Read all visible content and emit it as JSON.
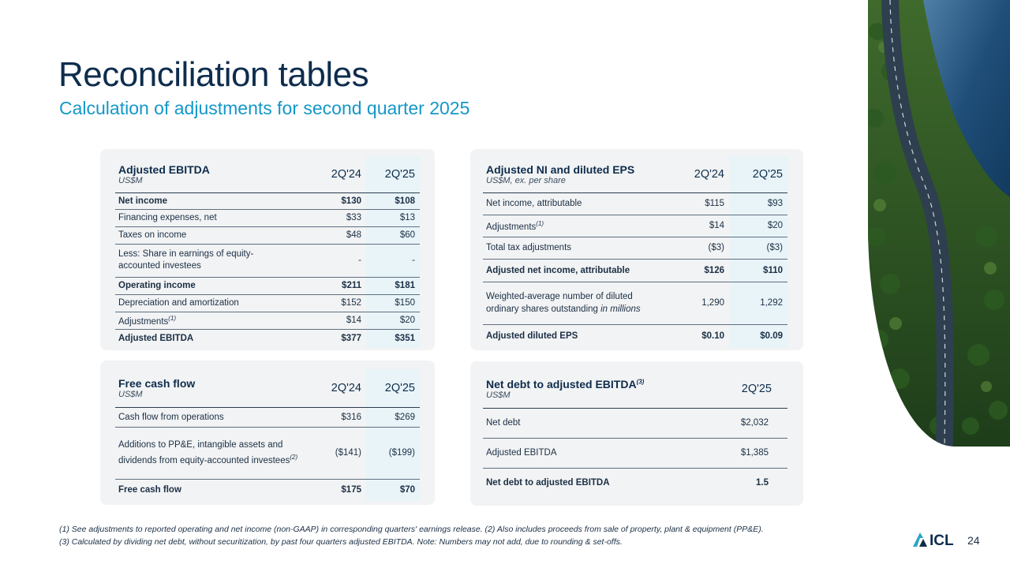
{
  "header": {
    "title": "Reconciliation tables",
    "subtitle": "Calculation of adjustments for second quarter 2025"
  },
  "ebitda": {
    "name": "Adjusted EBITDA",
    "unit": "US$M",
    "col1": "2Q'24",
    "col2": "2Q'25",
    "rows": [
      {
        "label": "Net income",
        "v1": "$130",
        "v2": "$108"
      },
      {
        "label": "Financing expenses, net",
        "v1": "$33",
        "v2": "$13"
      },
      {
        "label": "Taxes on income",
        "v1": "$48",
        "v2": "$60"
      },
      {
        "label": "Less: Share in earnings of equity-accounted investees",
        "v1": "-",
        "v2": "-"
      },
      {
        "label": "Operating income",
        "v1": "$211",
        "v2": "$181"
      },
      {
        "label": "Depreciation and amortization",
        "v1": "$152",
        "v2": "$150"
      },
      {
        "label": "Adjustments",
        "sup": "(1)",
        "v1": "$14",
        "v2": "$20"
      },
      {
        "label": "Adjusted EBITDA",
        "v1": "$377",
        "v2": "$351"
      }
    ]
  },
  "ni": {
    "name": "Adjusted NI and diluted EPS",
    "unit": "US$M, ex. per share",
    "col1": "2Q'24",
    "col2": "2Q'25",
    "rows": [
      {
        "label": "Net income, attributable",
        "v1": "$115",
        "v2": "$93"
      },
      {
        "label": "Adjustments",
        "sup": "(1)",
        "v1": "$14",
        "v2": "$20"
      },
      {
        "label": "Total tax adjustments",
        "v1": "($3)",
        "v2": "($3)"
      },
      {
        "label": "Adjusted net income, attributable",
        "v1": "$126",
        "v2": "$110"
      },
      {
        "label": "Weighted-average number of diluted ordinary shares outstanding",
        "italic": "in millions",
        "v1": "1,290",
        "v2": "1,292"
      },
      {
        "label": "Adjusted diluted EPS",
        "v1": "$0.10",
        "v2": "$0.09"
      }
    ]
  },
  "fcf": {
    "name": "Free cash flow",
    "unit": "US$M",
    "col1": "2Q'24",
    "col2": "2Q'25",
    "rows": [
      {
        "label": "Cash flow from operations",
        "v1": "$316",
        "v2": "$269"
      },
      {
        "label": "Additions to PP&E, intangible assets and dividends from equity-accounted investees",
        "sup": "(2)",
        "v1": "($141)",
        "v2": "($199)"
      },
      {
        "label": "Free cash flow",
        "v1": "$175",
        "v2": "$70"
      }
    ]
  },
  "netdebt": {
    "name": "Net debt to adjusted EBITDA",
    "sup": "(3)",
    "unit": "US$M",
    "col": "2Q'25",
    "rows": [
      {
        "label": "Net debt",
        "v": "$2,032"
      },
      {
        "label": "Adjusted EBITDA",
        "v": "$1,385"
      },
      {
        "label": "Net debt to adjusted EBITDA",
        "v": "1.5"
      }
    ]
  },
  "footnotes": {
    "line1": "(1) See adjustments to reported operating and net income (non-GAAP) in corresponding quarters' earnings release. (2) Also includes proceeds from sale of property, plant & equipment (PP&E).",
    "line2": "(3) Calculated by dividing net debt, without securitization, by past four quarters adjusted EBITDA. Note: Numbers may not add, due to rounding & set-offs."
  },
  "logo_text": "ICL",
  "page_number": "24",
  "colors": {
    "navy": "#0e2d4d",
    "accent": "#1597c9",
    "panel": "#f2f3f4",
    "highlight": "#e8f4f8"
  }
}
